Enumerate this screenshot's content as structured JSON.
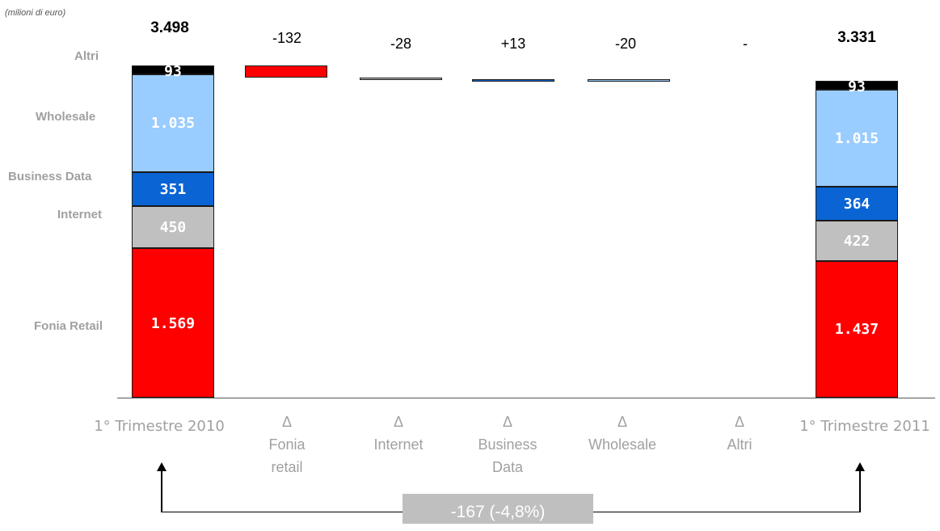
{
  "chart_data": {
    "type": "bar",
    "unit_note": "(milioni di euro)",
    "segment_names": [
      "Fonia Retail",
      "Internet",
      "Business Data",
      "Wholesale",
      "Altri"
    ],
    "colors": {
      "Fonia Retail": "#ff0000",
      "Internet": "#c0c0c0",
      "Business Data": "#0a64d4",
      "Wholesale": "#99ccff",
      "Altri": "#000000"
    },
    "bars": [
      {
        "label": "1° Trimestre 2010",
        "total": "3.498",
        "segments": [
          1569,
          450,
          351,
          1035,
          93
        ],
        "segment_labels": [
          "1.569",
          "450",
          "351",
          "1.035",
          "93"
        ]
      },
      {
        "label": "1° Trimestre 2011",
        "total": "3.331",
        "segments": [
          1437,
          422,
          364,
          1015,
          93
        ],
        "segment_labels": [
          "1.437",
          "422",
          "364",
          "1.015",
          "93"
        ]
      }
    ],
    "deltas": [
      {
        "symbol": "Δ",
        "label_lines": [
          "Fonia",
          "retail"
        ],
        "value": -132,
        "display": "-132",
        "color": "#ff0000"
      },
      {
        "symbol": "Δ",
        "label_lines": [
          "Internet"
        ],
        "value": -28,
        "display": "-28",
        "color": "#c0c0c0"
      },
      {
        "symbol": "Δ",
        "label_lines": [
          "Business",
          "Data"
        ],
        "value": 13,
        "display": "+13",
        "color": "#0a64d4"
      },
      {
        "symbol": "Δ",
        "label_lines": [
          "Wholesale"
        ],
        "value": -20,
        "display": "-20",
        "color": "#99ccff"
      },
      {
        "symbol": "Δ",
        "label_lines": [
          "Altri"
        ],
        "value": 0,
        "display": "-",
        "color": "#000000"
      }
    ],
    "overall_change": "-167 (-4,8%)"
  }
}
